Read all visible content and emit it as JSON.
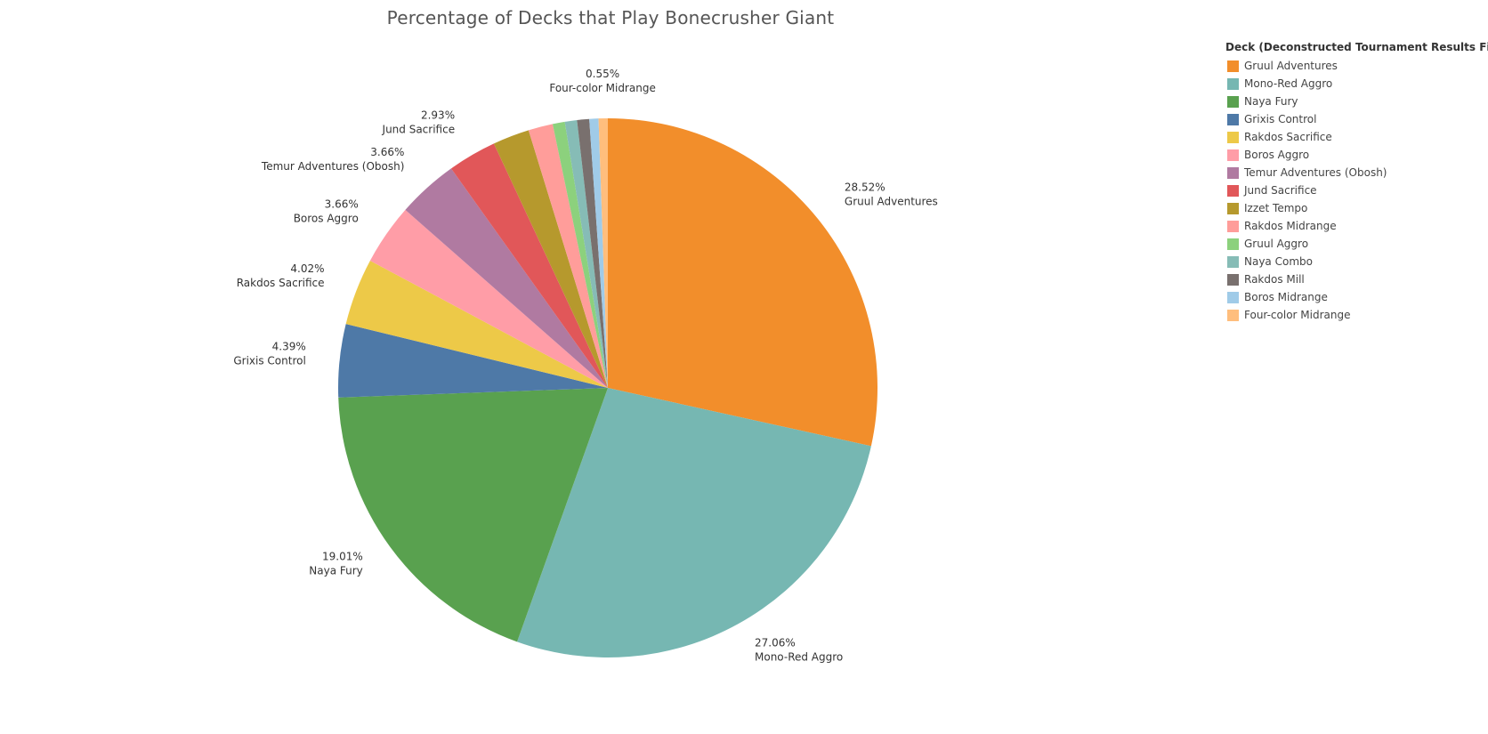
{
  "chart_data": {
    "type": "pie",
    "title": "Percentage of Decks that Play Bonecrusher Giant",
    "legend_title": "Deck (Deconstructed Tournament Results Final.csv)",
    "legend_position": "right",
    "slices": [
      {
        "name": "Gruul Adventures",
        "value": 28.52,
        "label": "28.52%",
        "color": "#f28e2b",
        "show_label": true
      },
      {
        "name": "Mono-Red Aggro",
        "value": 27.06,
        "label": "27.06%",
        "color": "#76b7b2",
        "show_label": true
      },
      {
        "name": "Naya Fury",
        "value": 19.01,
        "label": "19.01%",
        "color": "#59a14f",
        "show_label": true
      },
      {
        "name": "Grixis Control",
        "value": 4.39,
        "label": "4.39%",
        "color": "#4e79a7",
        "show_label": true
      },
      {
        "name": "Rakdos Sacrifice",
        "value": 4.02,
        "label": "4.02%",
        "color": "#edc948",
        "show_label": true
      },
      {
        "name": "Boros Aggro",
        "value": 3.66,
        "label": "3.66%",
        "color": "#ff9da7",
        "show_label": true
      },
      {
        "name": "Temur Adventures (Obosh)",
        "value": 3.66,
        "label": "3.66%",
        "color": "#b07aa1",
        "show_label": true
      },
      {
        "name": "Jund Sacrifice",
        "value": 2.93,
        "label": "2.93%",
        "color": "#e15759",
        "show_label": true
      },
      {
        "name": "Izzet Tempo",
        "value": 2.2,
        "color": "#b6992d",
        "show_label": false
      },
      {
        "name": "Rakdos Midrange",
        "value": 1.47,
        "color": "#ff9d9a",
        "show_label": false
      },
      {
        "name": "Gruul Aggro",
        "value": 0.73,
        "color": "#8cd17d",
        "show_label": false
      },
      {
        "name": "Naya Combo",
        "value": 0.73,
        "color": "#86bcb6",
        "show_label": false
      },
      {
        "name": "Rakdos Mill",
        "value": 0.73,
        "color": "#79706e",
        "show_label": false
      },
      {
        "name": "Boros Midrange",
        "value": 0.55,
        "color": "#a0cbe8",
        "show_label": false
      },
      {
        "name": "Four-color Midrange",
        "value": 0.55,
        "label": "0.55%",
        "color": "#ffbe7d",
        "show_label": true
      }
    ]
  }
}
